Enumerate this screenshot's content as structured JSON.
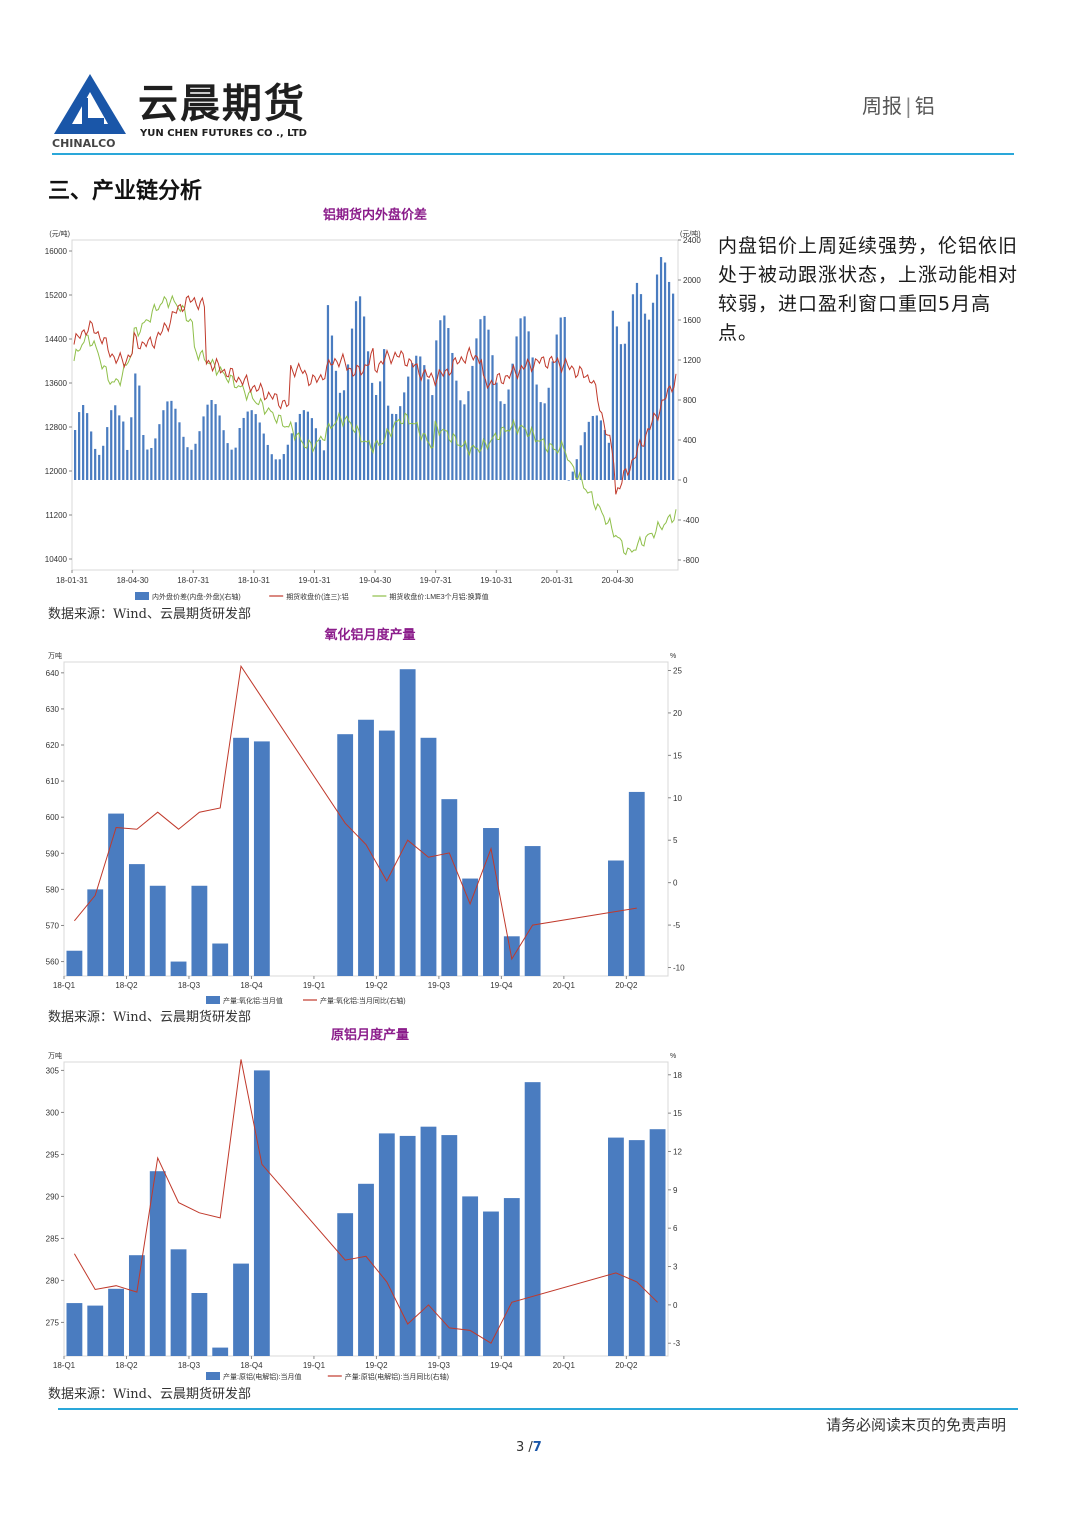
{
  "header": {
    "company_cn": "云晨期货",
    "company_en": "YUN CHEN FUTURES CO ., LTD",
    "logo_sub": "CHINALCO",
    "report_type": "周报",
    "product": "铝",
    "colors": {
      "brand_blue": "#1a56a8",
      "rule": "#2aa7d9"
    }
  },
  "section_title": "三、产业链分析",
  "commentary": "内盘铝价上周延续强势，伦铝依旧处于被动跟涨状态，上涨动能相对较弱，进口盈利窗口重回5月高点。",
  "footer": {
    "disclaimer": "请务必阅读末页的免责声明",
    "page": "3",
    "total": "7"
  },
  "source_text": "数据来源：Wind、云晨期货研发部",
  "chart_data": [
    {
      "type": "bar",
      "title": "铝期货内外盘价差",
      "ylabel": "(元/吨)",
      "ylabel_right": "(元/吨)",
      "xticks": [
        "18-01-31",
        "18-04-30",
        "18-07-31",
        "18-10-31",
        "19-01-31",
        "19-04-30",
        "19-07-31",
        "19-10-31",
        "20-01-31",
        "20-04-30"
      ],
      "yticks_left": [
        10400,
        11200,
        12000,
        12800,
        13600,
        14400,
        15200,
        16000
      ],
      "yticks_right": [
        -800,
        -400,
        0,
        400,
        800,
        1200,
        1600,
        2000,
        2400
      ],
      "ylim": [
        10200,
        16200
      ],
      "ylim_right": [
        -900,
        2400
      ],
      "legend": [
        "内外盘价差(内盘-外盘)(右轴)",
        "期货收盘价(连三):铝",
        "期货收盘价:LME3个月铝:换算值"
      ],
      "series_colors": [
        "#4a7cc0",
        "#c0392b",
        "#8fbf4a"
      ]
    },
    {
      "type": "bar",
      "title": "氧化铝月度产量",
      "ylabel": "万吨",
      "ylabel_right": "%",
      "xticks": [
        "18-Q1",
        "18-Q2",
        "18-Q3",
        "18-Q4",
        "19-Q1",
        "19-Q2",
        "19-Q3",
        "19-Q4",
        "20-Q1",
        "20-Q2"
      ],
      "yticks_left": [
        560,
        570,
        580,
        590,
        600,
        610,
        620,
        630,
        640
      ],
      "yticks_right": [
        -10,
        -5,
        0,
        5,
        10,
        15,
        20,
        25
      ],
      "ylim": [
        556,
        643
      ],
      "ylim_right": [
        -11,
        26
      ],
      "categories": [
        "2018-01",
        "2018-02",
        "2018-03",
        "2018-04",
        "2018-05",
        "2018-06",
        "2018-07",
        "2018-08",
        "2018-09",
        "2018-10",
        "2018-11",
        "2018-12",
        "2019-01",
        "2019-02",
        "2019-03",
        "2019-04",
        "2019-05",
        "2019-06",
        "2019-07",
        "2019-08",
        "2019-09",
        "2019-10",
        "2019-11",
        "2019-12",
        "2020-01",
        "2020-02",
        "2020-03",
        "2020-04",
        "2020-05"
      ],
      "series": [
        {
          "name": "产量:氧化铝:当月值",
          "values": [
            563,
            580,
            601,
            587,
            581,
            560,
            581,
            565,
            622,
            621,
            null,
            null,
            null,
            623,
            627,
            624,
            641,
            622,
            605,
            583,
            597,
            567,
            592,
            null,
            null,
            null,
            588,
            607,
            null
          ]
        },
        {
          "name": "产量:氧化铝:当月同比(右轴)",
          "values": [
            -4.5,
            -1.5,
            6.5,
            6.3,
            8.3,
            6.3,
            8.3,
            8.8,
            25.5,
            null,
            null,
            null,
            null,
            7.0,
            4.5,
            0.2,
            5.0,
            3.0,
            3.5,
            -2.5,
            4.0,
            -9.0,
            -5.0,
            null,
            null,
            null,
            null,
            -3.0,
            null
          ]
        }
      ]
    },
    {
      "type": "bar",
      "title": "原铝月度产量",
      "ylabel": "万吨",
      "ylabel_right": "%",
      "xticks": [
        "18-Q1",
        "18-Q2",
        "18-Q3",
        "18-Q4",
        "19-Q1",
        "19-Q2",
        "19-Q3",
        "19-Q4",
        "20-Q1",
        "20-Q2"
      ],
      "yticks_left": [
        275,
        280,
        285,
        290,
        295,
        300,
        305
      ],
      "yticks_right": [
        -3,
        0,
        3,
        6,
        9,
        12,
        15,
        18
      ],
      "ylim": [
        271,
        306
      ],
      "ylim_right": [
        -4,
        19
      ],
      "categories": [
        "2018-01",
        "2018-02",
        "2018-03",
        "2018-04",
        "2018-05",
        "2018-06",
        "2018-07",
        "2018-08",
        "2018-09",
        "2018-10",
        "2018-11",
        "2018-12",
        "2019-01",
        "2019-02",
        "2019-03",
        "2019-04",
        "2019-05",
        "2019-06",
        "2019-07",
        "2019-08",
        "2019-09",
        "2019-10",
        "2019-11",
        "2019-12",
        "2020-01",
        "2020-02",
        "2020-03",
        "2020-04",
        "2020-05"
      ],
      "series": [
        {
          "name": "产量:原铝(电解铝):当月值",
          "values": [
            277.3,
            277.0,
            279.0,
            283.0,
            293.0,
            283.7,
            278.5,
            272.0,
            282.0,
            305.0,
            null,
            null,
            null,
            288.0,
            291.5,
            297.5,
            297.2,
            298.3,
            297.3,
            290.0,
            288.2,
            289.8,
            303.6,
            null,
            null,
            null,
            297.0,
            296.7,
            298.0
          ]
        },
        {
          "name": "产量:原铝(电解铝):当月同比(右轴)",
          "values": [
            4.0,
            1.2,
            1.5,
            1.0,
            11.5,
            8.0,
            7.2,
            6.8,
            19.2,
            11.0,
            null,
            null,
            null,
            3.5,
            3.8,
            1.8,
            -1.5,
            0.0,
            -1.8,
            -2.0,
            -3.0,
            0.2,
            null,
            null,
            null,
            null,
            2.5,
            1.8,
            0.2
          ]
        }
      ]
    }
  ]
}
